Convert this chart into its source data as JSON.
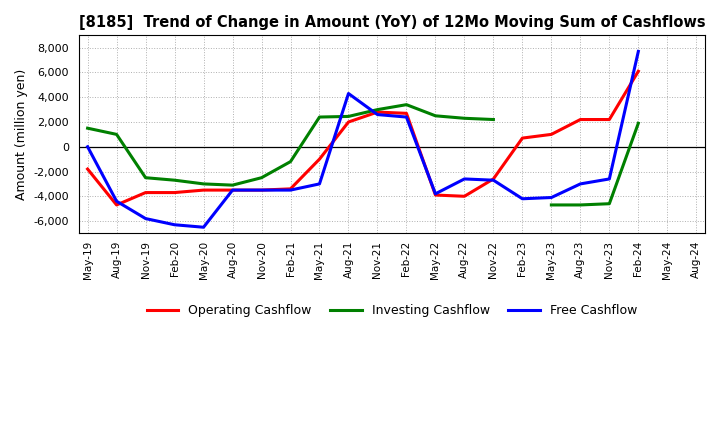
{
  "title": "[8185]  Trend of Change in Amount (YoY) of 12Mo Moving Sum of Cashflows",
  "ylabel": "Amount (million yen)",
  "x_labels": [
    "May-19",
    "Aug-19",
    "Nov-19",
    "Feb-20",
    "May-20",
    "Aug-20",
    "Nov-20",
    "Feb-21",
    "May-21",
    "Aug-21",
    "Nov-21",
    "Feb-22",
    "May-22",
    "Aug-22",
    "Nov-22",
    "Feb-23",
    "May-23",
    "Aug-23",
    "Nov-23",
    "Feb-24",
    "May-24",
    "Aug-24"
  ],
  "operating_color": "#ff0000",
  "investing_color": "#008000",
  "free_color": "#0000ff",
  "ylim": [
    -7000,
    9000
  ],
  "yticks": [
    -6000,
    -4000,
    -2000,
    0,
    2000,
    4000,
    6000,
    8000
  ],
  "background_color": "#ffffff",
  "grid_color": "#b0b0b0"
}
